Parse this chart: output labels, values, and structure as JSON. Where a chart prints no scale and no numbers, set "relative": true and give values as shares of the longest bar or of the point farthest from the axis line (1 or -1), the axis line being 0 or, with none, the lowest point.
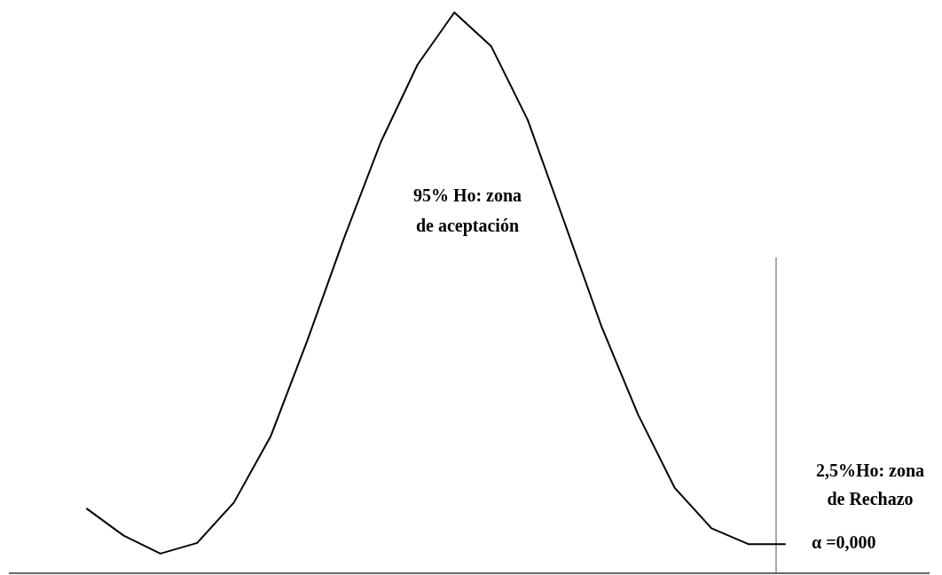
{
  "chart_data": {
    "type": "line",
    "relative": true,
    "categories": [
      null,
      null,
      null,
      null,
      null,
      null,
      null,
      null,
      null,
      null,
      null,
      null,
      null,
      null,
      null,
      null,
      null,
      null,
      null,
      null
    ],
    "series": [
      {
        "color": "#000000",
        "values": [
          0.115,
          0.067,
          0.035,
          0.054,
          0.126,
          0.244,
          0.415,
          0.598,
          0.769,
          0.907,
          1,
          0.94,
          0.808,
          0.625,
          0.441,
          0.283,
          0.152,
          0.08,
          0.052,
          0.052
        ]
      }
    ],
    "annotations": [
      "95% Ho: zona de aceptación",
      "2,5%Ho: zona de Rechazo",
      "α =0,000"
    ]
  }
}
